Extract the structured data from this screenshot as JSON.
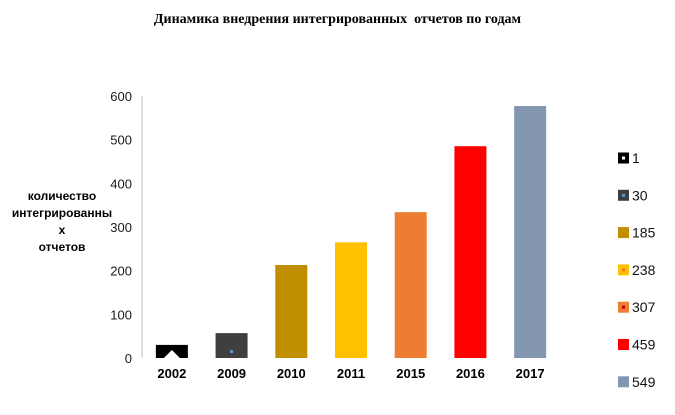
{
  "chart_data": {
    "type": "bar",
    "title": "Динамика внедрения интегрированных  отчетов по годам",
    "ylabel": "количество интегрированных отчетов",
    "ylabel_lines": [
      "количество",
      "интегрированны",
      "х",
      "отчетов"
    ],
    "xlabel": "",
    "categories": [
      "2002",
      "2009",
      "2010",
      "2011",
      "2015",
      "2016",
      "2017"
    ],
    "values": [
      30,
      57,
      213,
      265,
      334,
      485,
      577
    ],
    "legend_labels": [
      "1",
      "30",
      "185",
      "238",
      "307",
      "459",
      "549"
    ],
    "colors": [
      "#000000",
      "#3f3f3f",
      "#bf8f00",
      "#ffc000",
      "#ed7d31",
      "#ff0000",
      "#8497b0"
    ],
    "yticks": [
      0,
      100,
      200,
      300,
      400,
      500,
      600
    ],
    "ylim": [
      0,
      600
    ],
    "grid": false,
    "legend_position": "right"
  }
}
